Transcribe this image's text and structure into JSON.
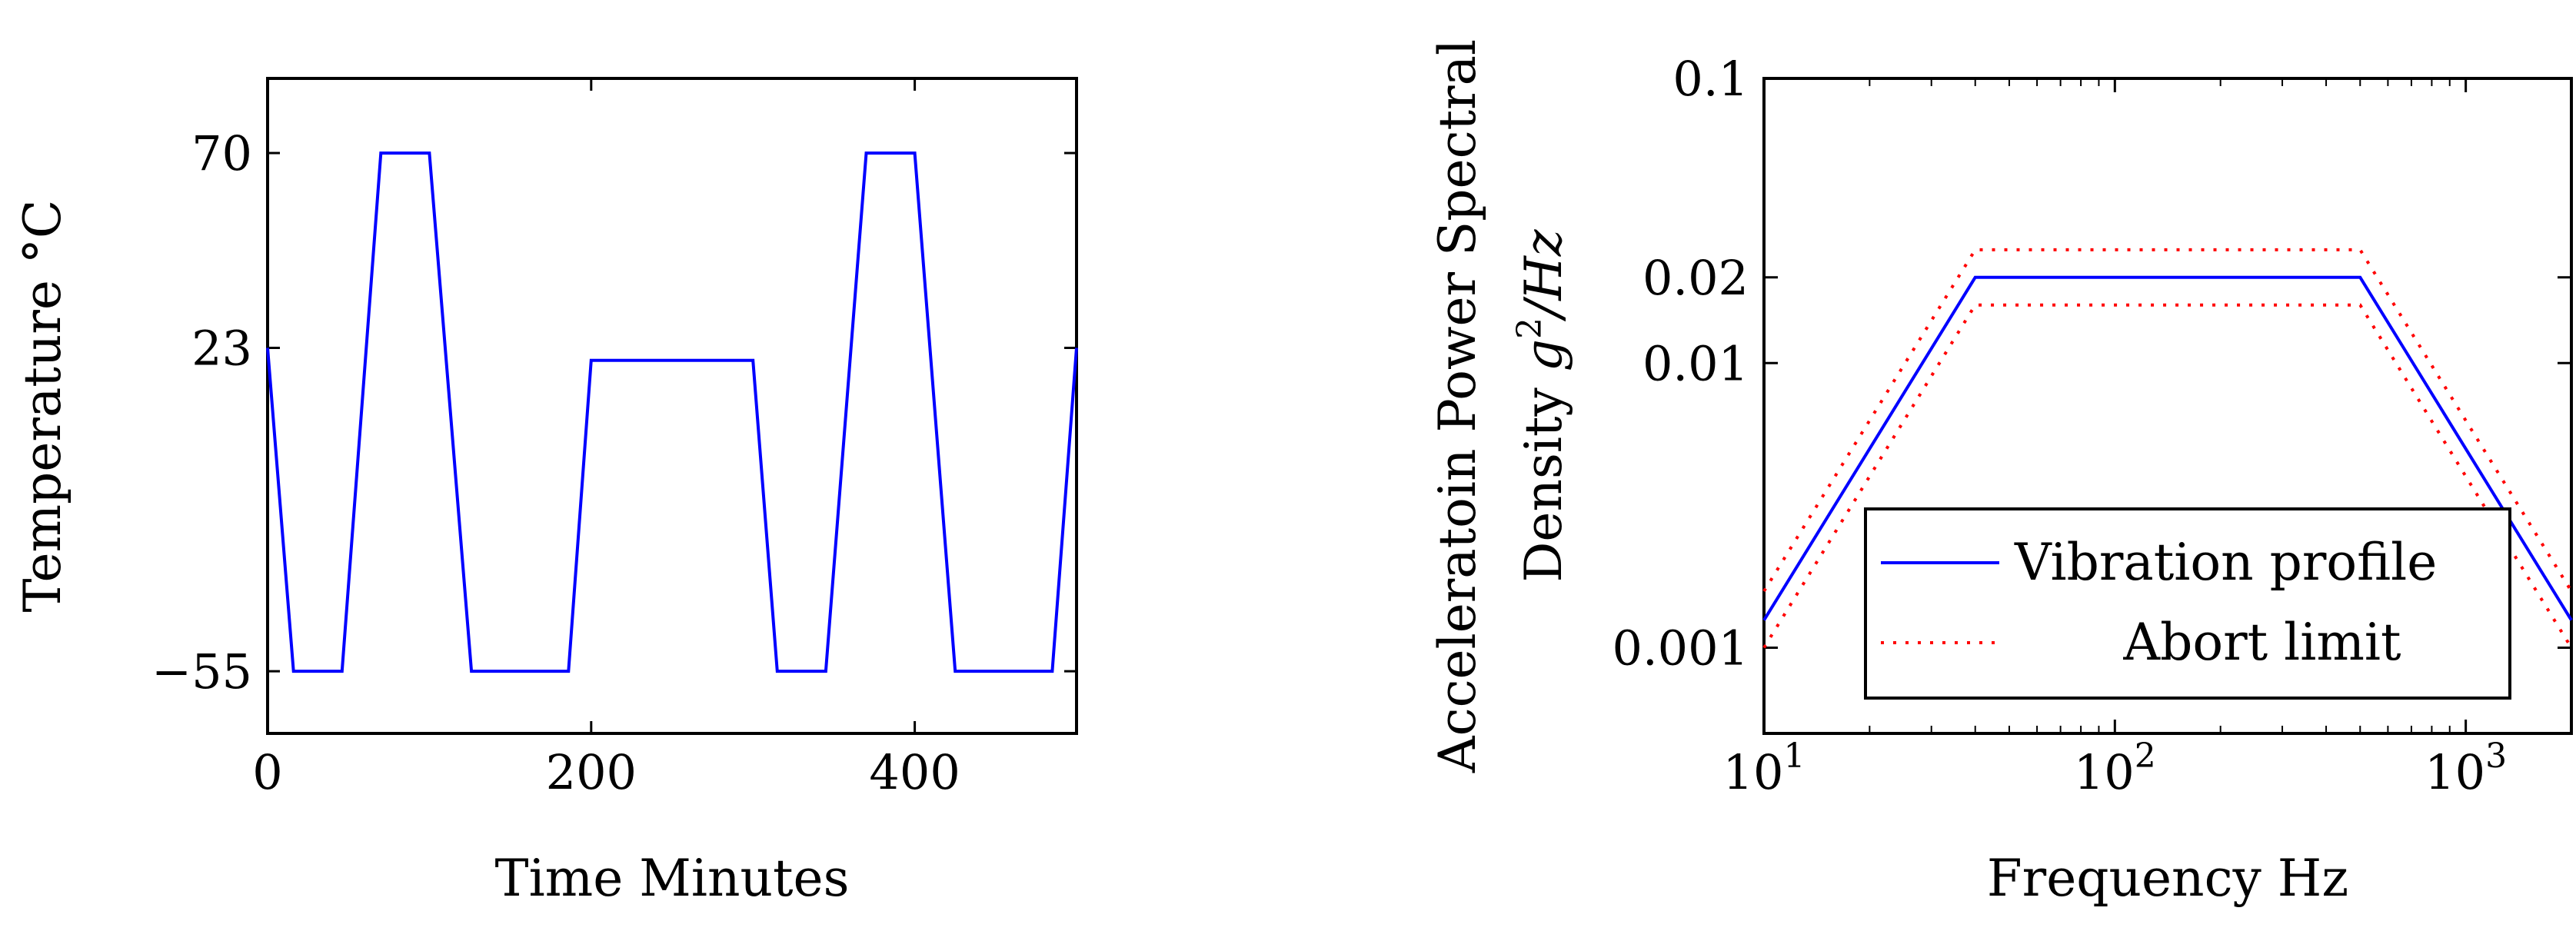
{
  "chart_data": [
    {
      "type": "line",
      "xlabel": "Time Minutes",
      "ylabel": "Temperature °C",
      "xlim": [
        0,
        500
      ],
      "ylim": [
        -70,
        88
      ],
      "xticks": [
        0,
        200,
        400
      ],
      "xtick_labels": [
        "0",
        "200",
        "400"
      ],
      "yticks": [
        -55,
        23,
        70
      ],
      "ytick_labels": [
        "−55",
        "23",
        "70"
      ],
      "grid": false,
      "colors": {
        "profile": "#0000ff"
      },
      "series": [
        {
          "x": [
            0,
            16,
            46,
            70,
            100,
            126,
            186,
            200,
            300,
            315,
            345,
            370,
            400,
            425,
            485,
            500
          ],
          "y": [
            23,
            -55,
            -55,
            70,
            70,
            -55,
            -55,
            20,
            20,
            -55,
            -55,
            70,
            70,
            -55,
            -55,
            23
          ]
        }
      ]
    },
    {
      "type": "line",
      "xlabel": "Frequency Hz",
      "ylabel_line1": "Acceleratoin Power Spectral",
      "ylabel_line2_prefix": "Density ",
      "ylabel_line2_g": "g",
      "ylabel_line2_exp": "2",
      "ylabel_line2_suffix": "/Hz",
      "xscale": "log",
      "yscale": "log",
      "xlim": [
        10,
        2000
      ],
      "ylim": [
        0.0005,
        0.1
      ],
      "xticks": [
        10,
        100,
        1000
      ],
      "xtick_base": "10",
      "xtick_exps": [
        "1",
        "2",
        "3"
      ],
      "yticks": [
        0.001,
        0.01,
        0.02,
        0.1
      ],
      "ytick_labels": [
        "0.001",
        "0.01",
        "0.02",
        "0.1"
      ],
      "grid": false,
      "legend_position": "lower-center",
      "colors": {
        "profile": "#0000ff",
        "abort": "#ff0000"
      },
      "series": [
        {
          "name": "Vibration profile",
          "style": "solid",
          "x": [
            10,
            40,
            500,
            2000
          ],
          "y": [
            0.00125,
            0.02,
            0.02,
            0.00125
          ]
        },
        {
          "name": "Abort limit",
          "style": "dotted",
          "x": [
            10,
            40,
            500,
            2000
          ],
          "y": [
            0.00158,
            0.025,
            0.025,
            0.00158
          ]
        },
        {
          "name": "Abort limit",
          "style": "dotted",
          "x": [
            10,
            40,
            500,
            2000
          ],
          "y": [
            0.001,
            0.016,
            0.016,
            0.001
          ]
        }
      ],
      "legend": [
        "Vibration profile",
        "Abort limit"
      ]
    }
  ]
}
